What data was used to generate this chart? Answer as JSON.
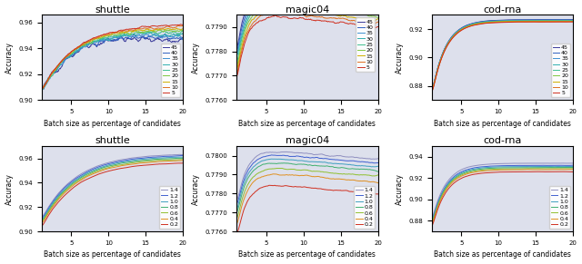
{
  "titles_row1": [
    "shuttle",
    "magic04",
    "cod rna"
  ],
  "titles_row2": [
    "shuttle",
    "magic04",
    "cod rna"
  ],
  "title_row1": [
    "shuttle",
    "magic04",
    "cod-rna"
  ],
  "title_row2": [
    "shuttle",
    "magic04",
    "cod-rna"
  ],
  "xlabel": "Batch size as percentage of candidates",
  "ylabel": "Accuracy",
  "row1_legend_labels": [
    "45",
    "40",
    "35",
    "30",
    "25",
    "20",
    "15",
    "10",
    "5"
  ],
  "row2_legend_labels": [
    "1.4",
    "1.2",
    "1.0",
    "0.8",
    "0.6",
    "0.4",
    "0.2"
  ],
  "subplot_bg": "#dde0ec",
  "fig_bg": "#ffffff",
  "shuttle_row1_ylim": [
    0.9,
    0.966
  ],
  "magic04_row1_ylim": [
    0.776,
    0.7795
  ],
  "codrna_row1_ylim": [
    0.87,
    0.93
  ],
  "shuttle_row2_ylim": [
    0.9,
    0.97
  ],
  "magic04_row2_ylim": [
    0.776,
    0.7805
  ],
  "codrna_row2_ylim": [
    0.87,
    0.95
  ]
}
